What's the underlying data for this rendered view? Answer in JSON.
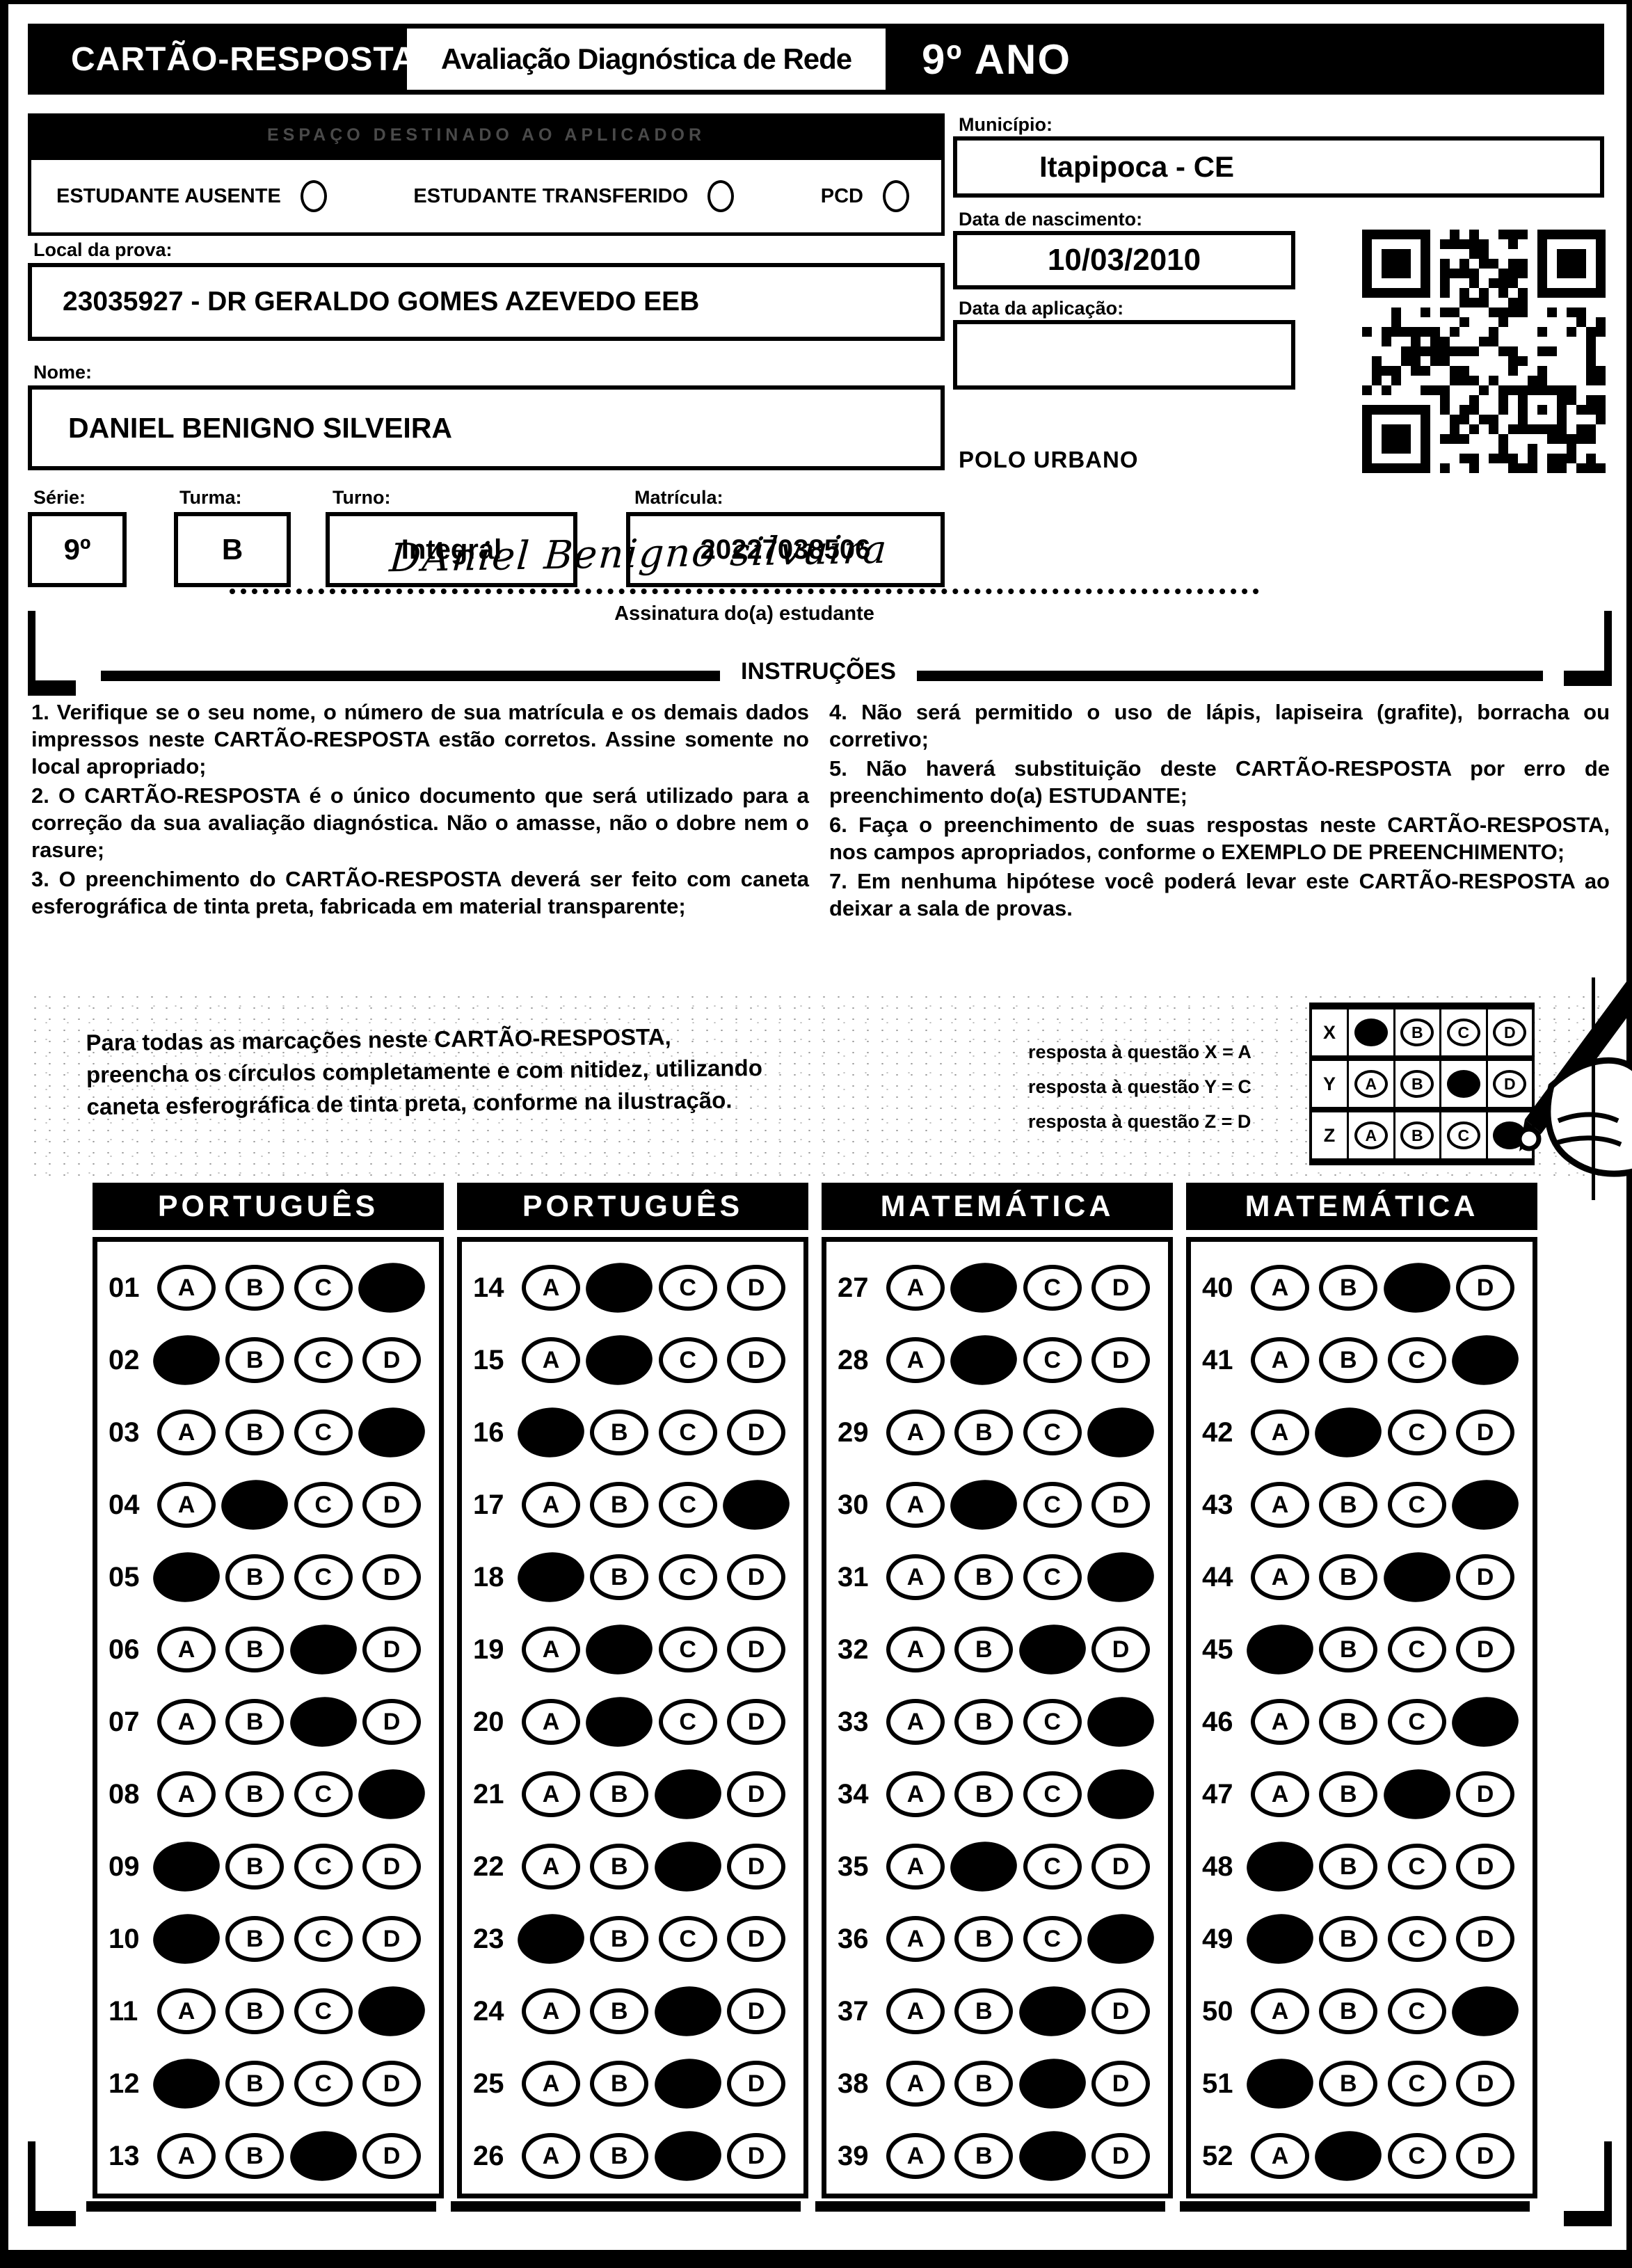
{
  "colors": {
    "ink": "#000000",
    "paper": "#ffffff"
  },
  "header": {
    "card_title": "CARTÃO-RESPOSTA",
    "exam_title": "Avaliação Diagnóstica de Rede",
    "grade": "9º ANO"
  },
  "applicator": {
    "section_title": "ESPAÇO DESTINADO AO APLICADOR",
    "checkboxes": [
      "ESTUDANTE AUSENTE",
      "ESTUDANTE TRANSFERIDO",
      "PCD"
    ]
  },
  "fields": {
    "local_label": "Local da prova:",
    "local_value": "23035927 - DR GERALDO GOMES AZEVEDO EEB",
    "nome_label": "Nome:",
    "nome_value": "DANIEL BENIGNO SILVEIRA",
    "serie_label": "Série:",
    "serie_value": "9º",
    "turma_label": "Turma:",
    "turma_value": "B",
    "turno_label": "Turno:",
    "turno_value": "Integral",
    "matricula_label": "Matrícula:",
    "matricula_value": "20227038506",
    "municipio_label": "Município:",
    "municipio_value": "Itapipoca - CE",
    "nascimento_label": "Data de nascimento:",
    "nascimento_value": "10/03/2010",
    "aplicacao_label": "Data da aplicação:",
    "aplicacao_value": "",
    "polo": "POLO URBANO"
  },
  "signature": {
    "handwritten": "DAniel Benigno silvuira",
    "label": "Assinatura do(a) estudante"
  },
  "instructions": {
    "title": "INSTRUÇÕES",
    "left": [
      "1. Verifique se o seu nome, o número de sua matrícula e os demais dados impressos neste CARTÃO-RESPOSTA estão corretos. Assine somente no local apropriado;",
      "2. O CARTÃO-RESPOSTA é o único documento que será utilizado para a correção da sua avaliação diagnóstica. Não o amasse, não o dobre nem o rasure;",
      "3. O preenchimento do CARTÃO-RESPOSTA deverá ser feito com caneta esferográfica de tinta preta, fabricada em material transparente;"
    ],
    "right": [
      "4. Não será permitido o uso de lápis, lapiseira (grafite), borracha ou corretivo;",
      "5. Não haverá substituição deste CARTÃO-RESPOSTA por erro de preenchimento do(a) ESTUDANTE;",
      "6. Faça o preenchimento de suas respostas neste CARTÃO-RESPOSTA, nos campos apropriados, conforme o EXEMPLO DE PREENCHIMENTO;",
      "7. Em nenhuma hipótese você poderá levar este CARTÃO-RESPOSTA ao deixar a sala de provas."
    ]
  },
  "example": {
    "text": "Para todas as marcações neste CARTÃO-RESPOSTA, preencha os círculos completamente e com nitidez, utilizando caneta esferográfica de tinta preta, conforme na ilustração.",
    "legend": [
      "resposta à questão X = A",
      "resposta à questão Y = C",
      "resposta à questão Z = D"
    ],
    "options": [
      "A",
      "B",
      "C",
      "D"
    ],
    "rows": [
      {
        "label": "X",
        "marked": "A"
      },
      {
        "label": "Y",
        "marked": "C"
      },
      {
        "label": "Z",
        "marked": "D"
      }
    ]
  },
  "answers": {
    "options": [
      "A",
      "B",
      "C",
      "D"
    ],
    "sections": [
      {
        "subject": "PORTUGUÊS",
        "questions": [
          {
            "n": "01",
            "marked": "D"
          },
          {
            "n": "02",
            "marked": "A"
          },
          {
            "n": "03",
            "marked": "D"
          },
          {
            "n": "04",
            "marked": "B"
          },
          {
            "n": "05",
            "marked": "A"
          },
          {
            "n": "06",
            "marked": "C"
          },
          {
            "n": "07",
            "marked": "C"
          },
          {
            "n": "08",
            "marked": "D"
          },
          {
            "n": "09",
            "marked": "A"
          },
          {
            "n": "10",
            "marked": "A"
          },
          {
            "n": "11",
            "marked": "D"
          },
          {
            "n": "12",
            "marked": "A"
          },
          {
            "n": "13",
            "marked": "C"
          }
        ]
      },
      {
        "subject": "PORTUGUÊS",
        "questions": [
          {
            "n": "14",
            "marked": "B"
          },
          {
            "n": "15",
            "marked": "B"
          },
          {
            "n": "16",
            "marked": "A"
          },
          {
            "n": "17",
            "marked": "D"
          },
          {
            "n": "18",
            "marked": "A"
          },
          {
            "n": "19",
            "marked": "B"
          },
          {
            "n": "20",
            "marked": "B"
          },
          {
            "n": "21",
            "marked": "C"
          },
          {
            "n": "22",
            "marked": "C"
          },
          {
            "n": "23",
            "marked": "A"
          },
          {
            "n": "24",
            "marked": "C"
          },
          {
            "n": "25",
            "marked": "C"
          },
          {
            "n": "26",
            "marked": "C"
          }
        ]
      },
      {
        "subject": "MATEMÁTICA",
        "questions": [
          {
            "n": "27",
            "marked": "B"
          },
          {
            "n": "28",
            "marked": "B"
          },
          {
            "n": "29",
            "marked": "D"
          },
          {
            "n": "30",
            "marked": "B"
          },
          {
            "n": "31",
            "marked": "D"
          },
          {
            "n": "32",
            "marked": "C"
          },
          {
            "n": "33",
            "marked": "D"
          },
          {
            "n": "34",
            "marked": "D"
          },
          {
            "n": "35",
            "marked": "B"
          },
          {
            "n": "36",
            "marked": "D"
          },
          {
            "n": "37",
            "marked": "C"
          },
          {
            "n": "38",
            "marked": "C"
          },
          {
            "n": "39",
            "marked": "C"
          }
        ]
      },
      {
        "subject": "MATEMÁTICA",
        "questions": [
          {
            "n": "40",
            "marked": "C"
          },
          {
            "n": "41",
            "marked": "D"
          },
          {
            "n": "42",
            "marked": "B"
          },
          {
            "n": "43",
            "marked": "D"
          },
          {
            "n": "44",
            "marked": "C"
          },
          {
            "n": "45",
            "marked": "A"
          },
          {
            "n": "46",
            "marked": "D"
          },
          {
            "n": "47",
            "marked": "C"
          },
          {
            "n": "48",
            "marked": "A"
          },
          {
            "n": "49",
            "marked": "A"
          },
          {
            "n": "50",
            "marked": "D"
          },
          {
            "n": "51",
            "marked": "A"
          },
          {
            "n": "52",
            "marked": "B"
          }
        ]
      }
    ]
  }
}
